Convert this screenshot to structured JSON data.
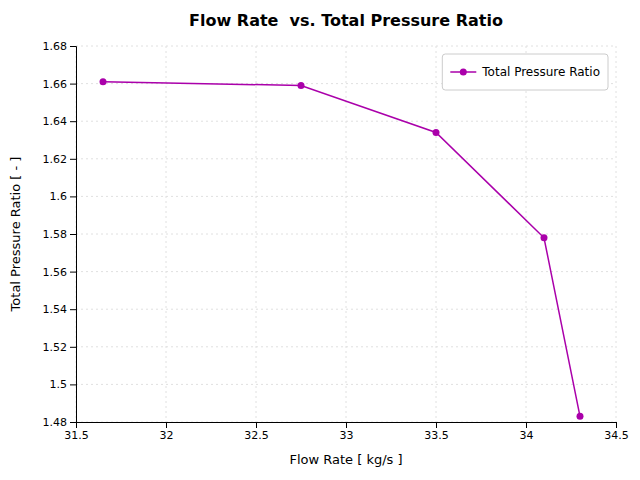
{
  "chart_data": {
    "type": "line",
    "title": "Flow Rate  vs. Total Pressure Ratio",
    "x_label": "Flow Rate [ kg/s ]",
    "y_label": "Total Pressure Ratio [ - ]",
    "x": [
      31.65,
      32.75,
      33.5,
      34.1,
      34.3
    ],
    "series": [
      {
        "name": "Total Pressure Ratio",
        "color": "#AA00AA",
        "marker": "circle",
        "values": [
          1.661,
          1.659,
          1.634,
          1.578,
          1.483
        ]
      }
    ],
    "xlim": [
      31.5,
      34.5
    ],
    "ylim": [
      1.48,
      1.68
    ],
    "xticks": [
      31.5,
      32,
      32.5,
      33,
      33.5,
      34,
      34.5
    ],
    "yticks": [
      1.48,
      1.5,
      1.52,
      1.54,
      1.56,
      1.58,
      1.6,
      1.62,
      1.64,
      1.66,
      1.68
    ],
    "grid": true,
    "legend": "upper right"
  }
}
